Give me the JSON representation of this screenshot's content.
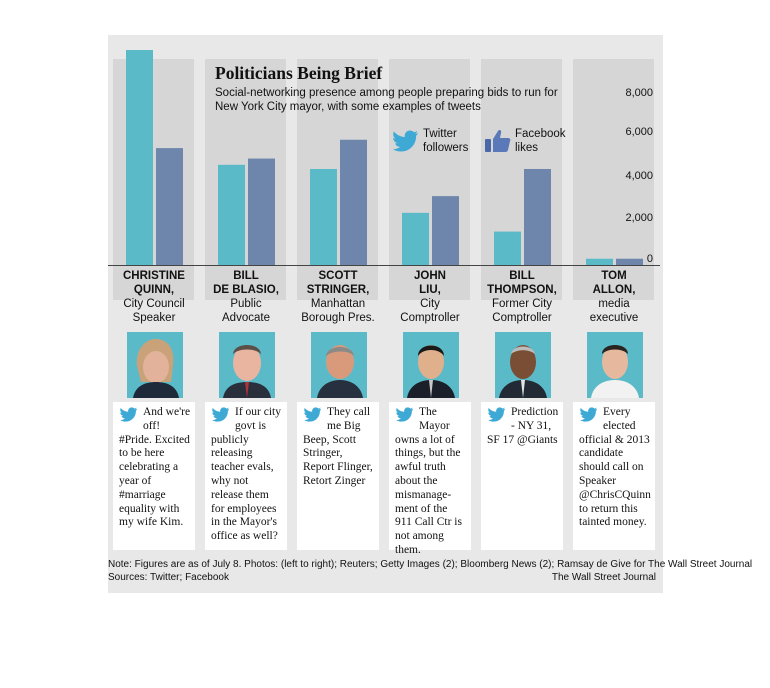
{
  "header": {
    "title": "Politicians Being Brief",
    "subtitle": "Social-networking presence among people preparing bids to run for New York City mayor, with some examples of tweets"
  },
  "legend": {
    "twitter": [
      "Twitter",
      "followers"
    ],
    "facebook": [
      "Facebook",
      "likes"
    ]
  },
  "colors": {
    "twitter": "#5bbac8",
    "facebook": "#6e86ab",
    "panel": "#e8e8e8",
    "column": "#d6d6d6"
  },
  "chart_data": {
    "type": "bar",
    "title": "Politicians Being Brief",
    "categories": [
      "CHRISTINE QUINN, City Council Speaker",
      "BILL DE BLASIO, Public Advocate",
      "SCOTT STRINGER, Manhattan Borough Pres.",
      "JOHN LIU, City Comptroller",
      "BILL THOMPSON, Former City Comptroller",
      "TOM ALLON, media executive"
    ],
    "series": [
      {
        "name": "Twitter followers",
        "values": [
          10300,
          4800,
          4600,
          2500,
          1600,
          300
        ]
      },
      {
        "name": "Facebook likes",
        "values": [
          5600,
          5100,
          6000,
          3300,
          4600,
          300
        ]
      }
    ],
    "yticks": [
      "8,000",
      "6,000",
      "4,000",
      "2,000",
      "0"
    ],
    "ytick_values": [
      8000,
      6000,
      4000,
      2000,
      0
    ],
    "ylim": [
      0,
      10300
    ],
    "grid": false,
    "legend_position": "top-right"
  },
  "people": [
    {
      "name": [
        "CHRISTINE",
        "QUINN,"
      ],
      "role": [
        "City Council",
        "Speaker"
      ],
      "tweet": "And we're off! #Pride. Excited to be here celebrating a year of #marriage equality with my wife Kim."
    },
    {
      "name": [
        "BILL",
        "DE BLASIO,"
      ],
      "role": [
        "Public",
        "Advocate"
      ],
      "tweet": "If our city govt is publicly releasing teacher evals, why not release them for employees in the Mayor's office as well?"
    },
    {
      "name": [
        "SCOTT",
        "STRINGER,"
      ],
      "role": [
        "Manhattan",
        "Borough Pres."
      ],
      "tweet": "They call me Big Beep, Scott Stringer, Report Flinger, Retort Zinger"
    },
    {
      "name": [
        "JOHN",
        "LIU,"
      ],
      "role": [
        "City",
        "Comptroller"
      ],
      "tweet": "The Mayor owns a lot of things, but the awful truth about the mismanage-ment of the 911 Call Ctr is not among them."
    },
    {
      "name": [
        "BILL",
        "THOMPSON,"
      ],
      "role": [
        "Former City",
        "Comptroller"
      ],
      "tweet": "Prediction - NY 31, SF 17 @Giants"
    },
    {
      "name": [
        "TOM",
        "ALLON,"
      ],
      "role": [
        "media",
        "executive"
      ],
      "tweet": "Every elected official & 2013 candidate should call on Speaker @ChrisCQuinn to return this tainted money."
    }
  ],
  "footer": {
    "note": "Note: Figures are as of July 8.  Photos: (left to right); Reuters; Getty Images (2); Bloomberg News (2); Ramsay de Give for The Wall Street Journal",
    "sources": "Sources: Twitter; Facebook",
    "credit": "The Wall Street Journal"
  }
}
